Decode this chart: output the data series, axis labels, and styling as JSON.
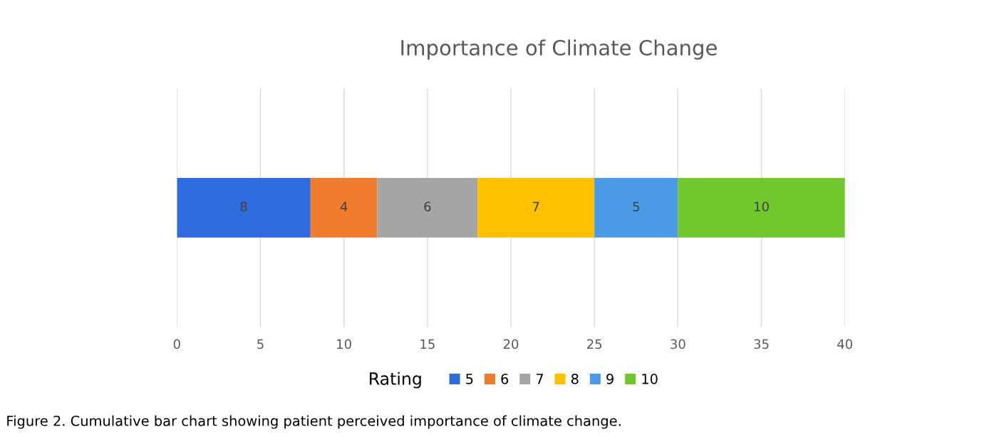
{
  "chart_data": {
    "type": "bar",
    "orientation": "horizontal",
    "stacked": true,
    "title": "Importance of Climate Change",
    "categories": [
      null
    ],
    "series": [
      {
        "name": "5",
        "color": "#2e6bdc",
        "values": [
          8
        ]
      },
      {
        "name": "6",
        "color": "#f27c2e",
        "values": [
          4
        ]
      },
      {
        "name": "7",
        "color": "#a5a5a5",
        "values": [
          6
        ]
      },
      {
        "name": "8",
        "color": "#ffc000",
        "values": [
          7
        ]
      },
      {
        "name": "9",
        "color": "#4a9ae6",
        "values": [
          5
        ]
      },
      {
        "name": "10",
        "color": "#70c82e",
        "values": [
          10
        ]
      }
    ],
    "xlim": [
      0,
      40
    ],
    "xticks": [
      0,
      5,
      10,
      15,
      20,
      25,
      30,
      35,
      40
    ],
    "grid": "x",
    "data_labels": true,
    "legend": "bottom",
    "legend_title": "Rating",
    "annotations": [
      "Figure 2. Cumulative bar chart showing patient perceived importance of climate change."
    ]
  }
}
